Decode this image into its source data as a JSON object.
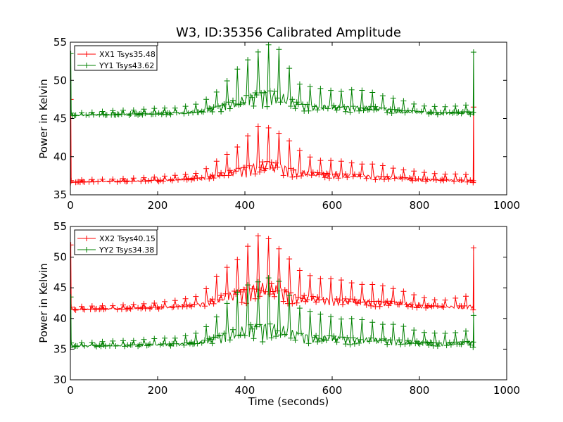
{
  "chart_data": [
    {
      "type": "line",
      "title": "W3, ID:35356 Calibrated Amplitude",
      "xlabel": "",
      "ylabel": "Power in Kelvin",
      "xlim": [
        0,
        1000
      ],
      "ylim": [
        35,
        55
      ],
      "x_ticks": [
        "0",
        "200",
        "400",
        "600",
        "800",
        "1000"
      ],
      "y_ticks": [
        "35",
        "40",
        "45",
        "50",
        "55"
      ],
      "legend_position": "top-left",
      "marker": "+",
      "series": [
        {
          "name": "XX1 Tsys35.48",
          "color": "#ff0000",
          "baseline": [
            [
              0,
              36.6
            ],
            [
              200,
              36.7
            ],
            [
              300,
              36.9
            ],
            [
              450,
              37.0
            ],
            [
              600,
              37.0
            ],
            [
              800,
              36.7
            ],
            [
              924,
              36.6
            ]
          ],
          "upper": [
            [
              0,
              36.9
            ],
            [
              150,
              37.2
            ],
            [
              250,
              37.6
            ],
            [
              300,
              38.0
            ],
            [
              350,
              40.0
            ],
            [
              400,
              42.5
            ],
            [
              430,
              44.0
            ],
            [
              450,
              44.2
            ],
            [
              480,
              43.5
            ],
            [
              520,
              41.0
            ],
            [
              560,
              39.8
            ],
            [
              600,
              39.5
            ],
            [
              650,
              39.3
            ],
            [
              700,
              39.0
            ],
            [
              750,
              38.5
            ],
            [
              800,
              38.0
            ],
            [
              850,
              37.8
            ],
            [
              900,
              37.7
            ],
            [
              924,
              37.6
            ]
          ],
          "start_spike": [
            0,
            47.5
          ],
          "end_spike": [
            924,
            46.5
          ]
        },
        {
          "name": "YY1 Tsys43.62",
          "color": "#008000",
          "baseline": [
            [
              0,
              45.3
            ],
            [
              200,
              45.4
            ],
            [
              300,
              45.6
            ],
            [
              450,
              45.8
            ],
            [
              600,
              45.7
            ],
            [
              800,
              45.5
            ],
            [
              924,
              45.4
            ]
          ],
          "upper": [
            [
              0,
              45.7
            ],
            [
              150,
              46.2
            ],
            [
              250,
              46.5
            ],
            [
              300,
              47.0
            ],
            [
              350,
              49.5
            ],
            [
              400,
              52.5
            ],
            [
              430,
              54.5
            ],
            [
              450,
              55.0
            ],
            [
              480,
              54.0
            ],
            [
              520,
              50.0
            ],
            [
              560,
              49.0
            ],
            [
              600,
              48.8
            ],
            [
              650,
              48.8
            ],
            [
              700,
              48.5
            ],
            [
              750,
              47.5
            ],
            [
              800,
              46.8
            ],
            [
              850,
              46.5
            ],
            [
              900,
              46.8
            ],
            [
              924,
              47.0
            ]
          ],
          "start_spike": [
            0,
            53.5
          ],
          "end_spike": [
            924,
            53.7
          ]
        }
      ]
    },
    {
      "type": "line",
      "title": "",
      "xlabel": "Time (seconds)",
      "ylabel": "Power in Kelvin",
      "xlim": [
        0,
        1000
      ],
      "ylim": [
        30,
        55
      ],
      "x_ticks": [
        "0",
        "200",
        "400",
        "600",
        "800",
        "1000"
      ],
      "y_ticks": [
        "30",
        "35",
        "40",
        "45",
        "50",
        "55"
      ],
      "legend_position": "top-left",
      "marker": "+",
      "series": [
        {
          "name": "XX2 Tsys40.15",
          "color": "#ff0000",
          "baseline": [
            [
              0,
              41.3
            ],
            [
              200,
              41.5
            ],
            [
              300,
              41.8
            ],
            [
              450,
              42.0
            ],
            [
              600,
              41.8
            ],
            [
              800,
              41.6
            ],
            [
              924,
              41.4
            ]
          ],
          "upper": [
            [
              0,
              41.9
            ],
            [
              150,
              42.3
            ],
            [
              250,
              43.0
            ],
            [
              300,
              44.0
            ],
            [
              350,
              48.0
            ],
            [
              400,
              51.5
            ],
            [
              430,
              53.5
            ],
            [
              450,
              53.8
            ],
            [
              480,
              52.0
            ],
            [
              520,
              48.0
            ],
            [
              560,
              47.0
            ],
            [
              600,
              46.5
            ],
            [
              650,
              46.0
            ],
            [
              700,
              45.5
            ],
            [
              750,
              45.0
            ],
            [
              800,
              43.5
            ],
            [
              850,
              43.0
            ],
            [
              900,
              43.5
            ],
            [
              924,
              44.0
            ]
          ],
          "start_spike": [
            0,
            52.0
          ],
          "end_spike": [
            924,
            51.5
          ]
        },
        {
          "name": "YY2 Tsys34.38",
          "color": "#008000",
          "baseline": [
            [
              0,
              35.3
            ],
            [
              200,
              35.4
            ],
            [
              300,
              35.5
            ],
            [
              450,
              35.6
            ],
            [
              600,
              35.5
            ],
            [
              800,
              35.4
            ],
            [
              924,
              35.3
            ]
          ],
          "upper": [
            [
              0,
              36.0
            ],
            [
              150,
              36.5
            ],
            [
              250,
              37.0
            ],
            [
              300,
              37.8
            ],
            [
              350,
              42.0
            ],
            [
              400,
              45.5
            ],
            [
              430,
              47.0
            ],
            [
              450,
              47.0
            ],
            [
              480,
              46.0
            ],
            [
              520,
              42.5
            ],
            [
              560,
              40.8
            ],
            [
              600,
              40.5
            ],
            [
              650,
              40.0
            ],
            [
              700,
              39.5
            ],
            [
              750,
              39.0
            ],
            [
              800,
              38.0
            ],
            [
              850,
              37.5
            ],
            [
              900,
              38.0
            ],
            [
              924,
              38.5
            ]
          ],
          "start_spike": [
            0,
            43.5
          ],
          "end_spike": [
            924,
            40.5
          ]
        }
      ]
    }
  ]
}
